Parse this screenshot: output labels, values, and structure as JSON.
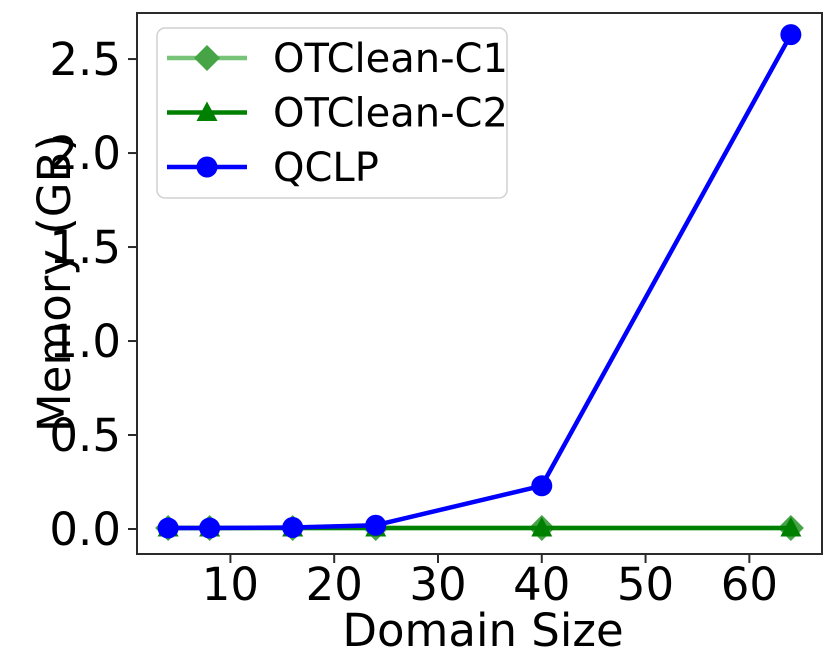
{
  "figure": {
    "background": "#ffffff",
    "spine_color": "#2b2b2b",
    "text_color": "#000000",
    "legend_border_color": "#d0d0d0",
    "legend_fill": "#ffffff"
  },
  "chart_data": {
    "type": "line",
    "title": "",
    "xlabel": "Domain Size",
    "ylabel": "Memory (GB)",
    "x": [
      4,
      8,
      16,
      24,
      40,
      64
    ],
    "series": [
      {
        "name": "OTClean-C1",
        "marker": "diamond",
        "line_color": "#77c377",
        "marker_color": "#46a346",
        "values": [
          0.005,
          0.005,
          0.005,
          0.005,
          0.005,
          0.005
        ]
      },
      {
        "name": "OTClean-C2",
        "marker": "triangle",
        "line_color": "#008000",
        "marker_color": "#008000",
        "values": [
          0.005,
          0.005,
          0.005,
          0.005,
          0.005,
          0.005
        ]
      },
      {
        "name": "QCLP",
        "marker": "circle",
        "line_color": "#0000ff",
        "marker_color": "#0000ff",
        "values": [
          0.005,
          0.005,
          0.008,
          0.02,
          0.23,
          2.63
        ]
      }
    ],
    "xticks": [
      10,
      20,
      30,
      40,
      50,
      60
    ],
    "xtick_labels": [
      "10",
      "20",
      "30",
      "40",
      "50",
      "60"
    ],
    "yticks": [
      0.0,
      0.5,
      1.0,
      1.5,
      2.0,
      2.5
    ],
    "ytick_labels": [
      "0.0",
      "0.5",
      "1.0",
      "1.5",
      "2.0",
      "2.5"
    ],
    "xlim": [
      1,
      67
    ],
    "ylim": [
      -0.133,
      2.745
    ],
    "grid": false,
    "legend": {
      "position": "upper left",
      "entries": [
        "OTClean-C1",
        "OTClean-C2",
        "QCLP"
      ]
    }
  }
}
